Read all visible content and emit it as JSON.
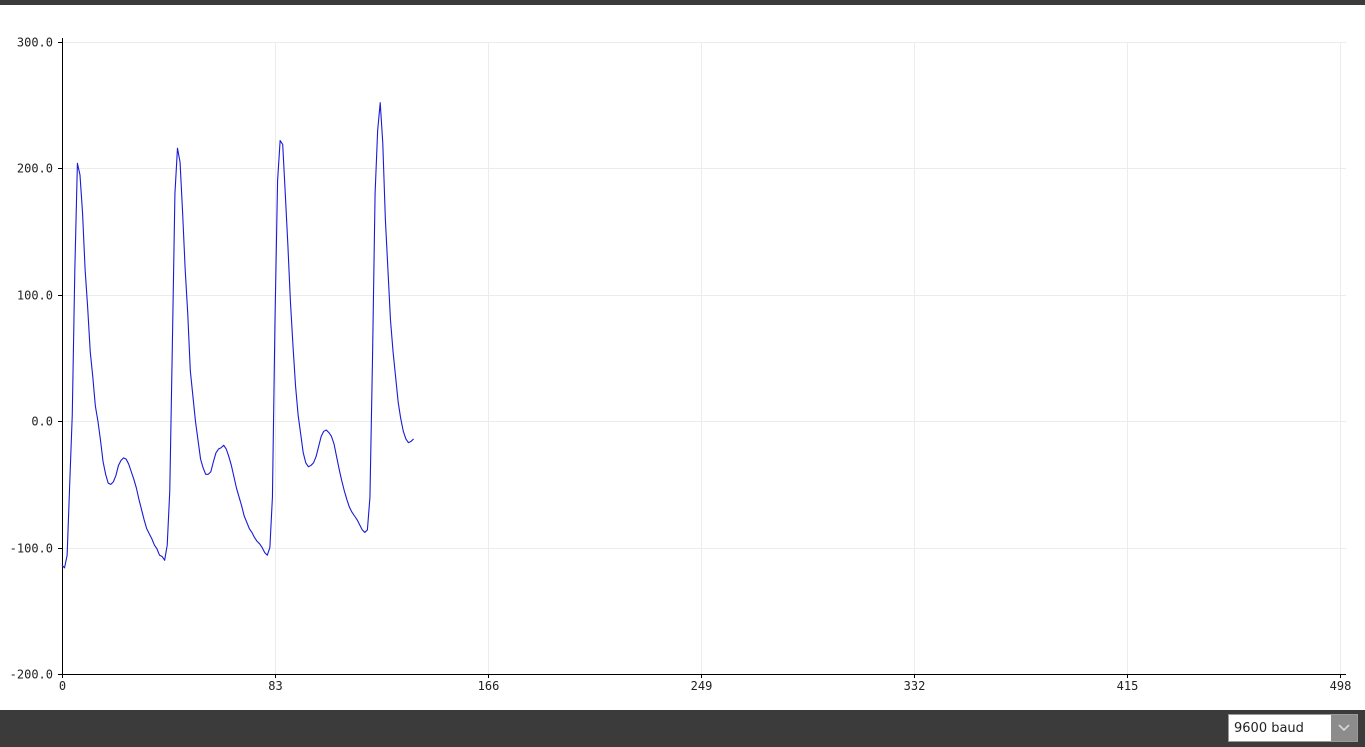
{
  "serial_plotter": {
    "baud_rate": "9600 baud"
  },
  "colors": {
    "series": "#1a1ad6",
    "grid": "#ececec",
    "axis": "#000000",
    "bars": "#3b3b3b"
  },
  "chart_data": {
    "type": "line",
    "title": "",
    "xlabel": "",
    "ylabel": "",
    "xlim": [
      0,
      498
    ],
    "ylim": [
      -200,
      300
    ],
    "x_ticks": [
      "0",
      "83",
      "166",
      "249",
      "332",
      "415",
      "498"
    ],
    "y_ticks": [
      "300.0",
      "200.0",
      "100.0",
      "0.0",
      "-100.0",
      "-200.0"
    ],
    "grid": true,
    "legend": "none",
    "series": [
      {
        "values": [
          -114,
          -116,
          -106,
          -50,
          5,
          120,
          204,
          195,
          165,
          120,
          90,
          55,
          35,
          12,
          0,
          -15,
          -32,
          -42,
          -49,
          -50,
          -48,
          -43,
          -35,
          -31,
          -29,
          -30,
          -34,
          -40,
          -46,
          -53,
          -62,
          -70,
          -78,
          -85,
          -89,
          -93,
          -98,
          -101,
          -106,
          -107,
          -110,
          -98,
          -55,
          60,
          180,
          216,
          205,
          165,
          120,
          85,
          40,
          20,
          0,
          -15,
          -30,
          -37,
          -42,
          -42,
          -40,
          -32,
          -25,
          -22,
          -21,
          -19,
          -22,
          -28,
          -35,
          -44,
          -53,
          -60,
          -67,
          -75,
          -80,
          -85,
          -88,
          -92,
          -95,
          -97,
          -100,
          -104,
          -106,
          -100,
          -60,
          80,
          190,
          222,
          219,
          180,
          140,
          95,
          60,
          28,
          5,
          -10,
          -25,
          -33,
          -36,
          -35,
          -33,
          -28,
          -20,
          -12,
          -8,
          -7,
          -9,
          -12,
          -18,
          -28,
          -38,
          -47,
          -55,
          -62,
          -68,
          -72,
          -75,
          -78,
          -82,
          -86,
          -88,
          -86,
          -60,
          50,
          180,
          230,
          252,
          220,
          160,
          120,
          80,
          55,
          35,
          15,
          2,
          -8,
          -14,
          -17,
          -16,
          -14
        ]
      }
    ]
  }
}
